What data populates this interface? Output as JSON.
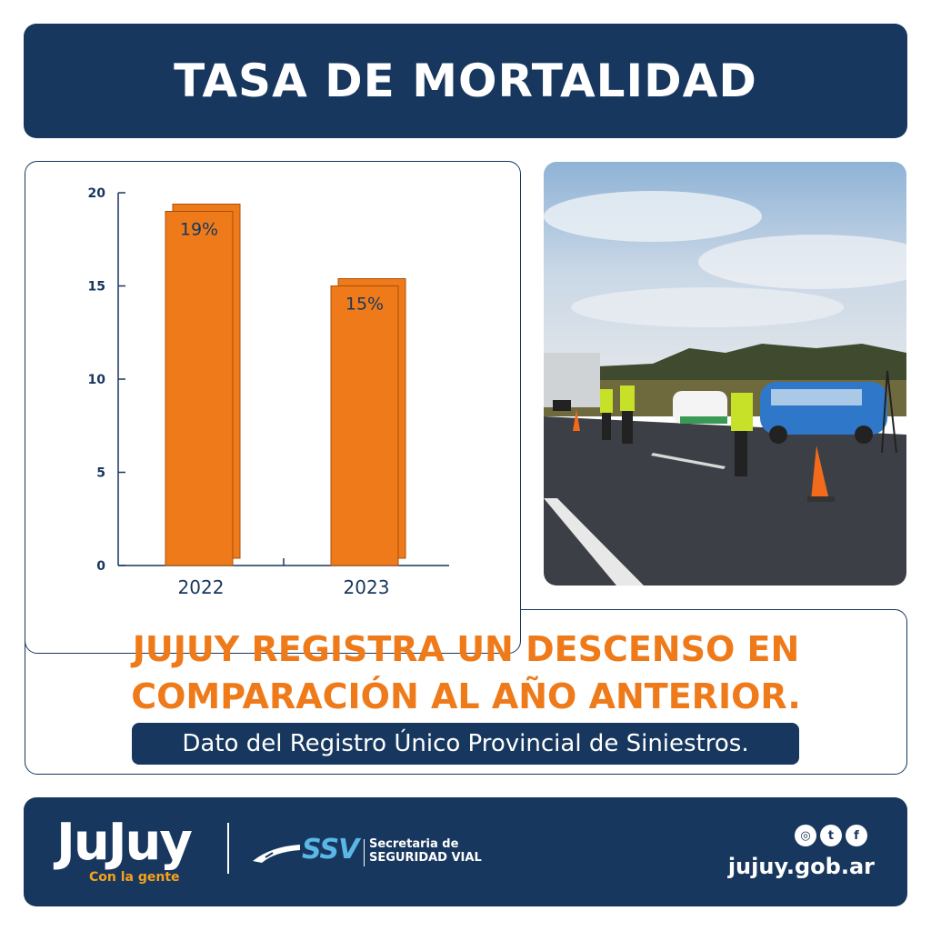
{
  "header": {
    "title": "TASA DE MORTALIDAD"
  },
  "chart_data": {
    "type": "bar",
    "categories": [
      "2022",
      "2023"
    ],
    "values": [
      19,
      15
    ],
    "data_labels": [
      "19%",
      "15%"
    ],
    "ylim": [
      0,
      20
    ],
    "yticks": [
      0,
      5,
      10,
      15,
      20
    ],
    "grid": false,
    "bar_color": "#ee7a1a",
    "axis_color": "#17375e"
  },
  "headline": {
    "line1": "JUJUY REGISTRA UN DESCENSO EN",
    "line2": "COMPARACIÓN AL AÑO ANTERIOR."
  },
  "source": "Dato del Registro Único Provincial de Siniestros.",
  "footer": {
    "logo": "JuJuy",
    "tagline": "Con la gente",
    "ssv": "SSV",
    "ssv_line1": "Secretaria de",
    "ssv_line2": "SEGURIDAD VIAL",
    "website": "jujuy.gob.ar",
    "social_icons": [
      "instagram-icon",
      "twitter-icon",
      "facebook-icon"
    ]
  },
  "colors": {
    "navy": "#17375e",
    "orange": "#ee7a1a",
    "light_blue": "#5ab7e6"
  }
}
